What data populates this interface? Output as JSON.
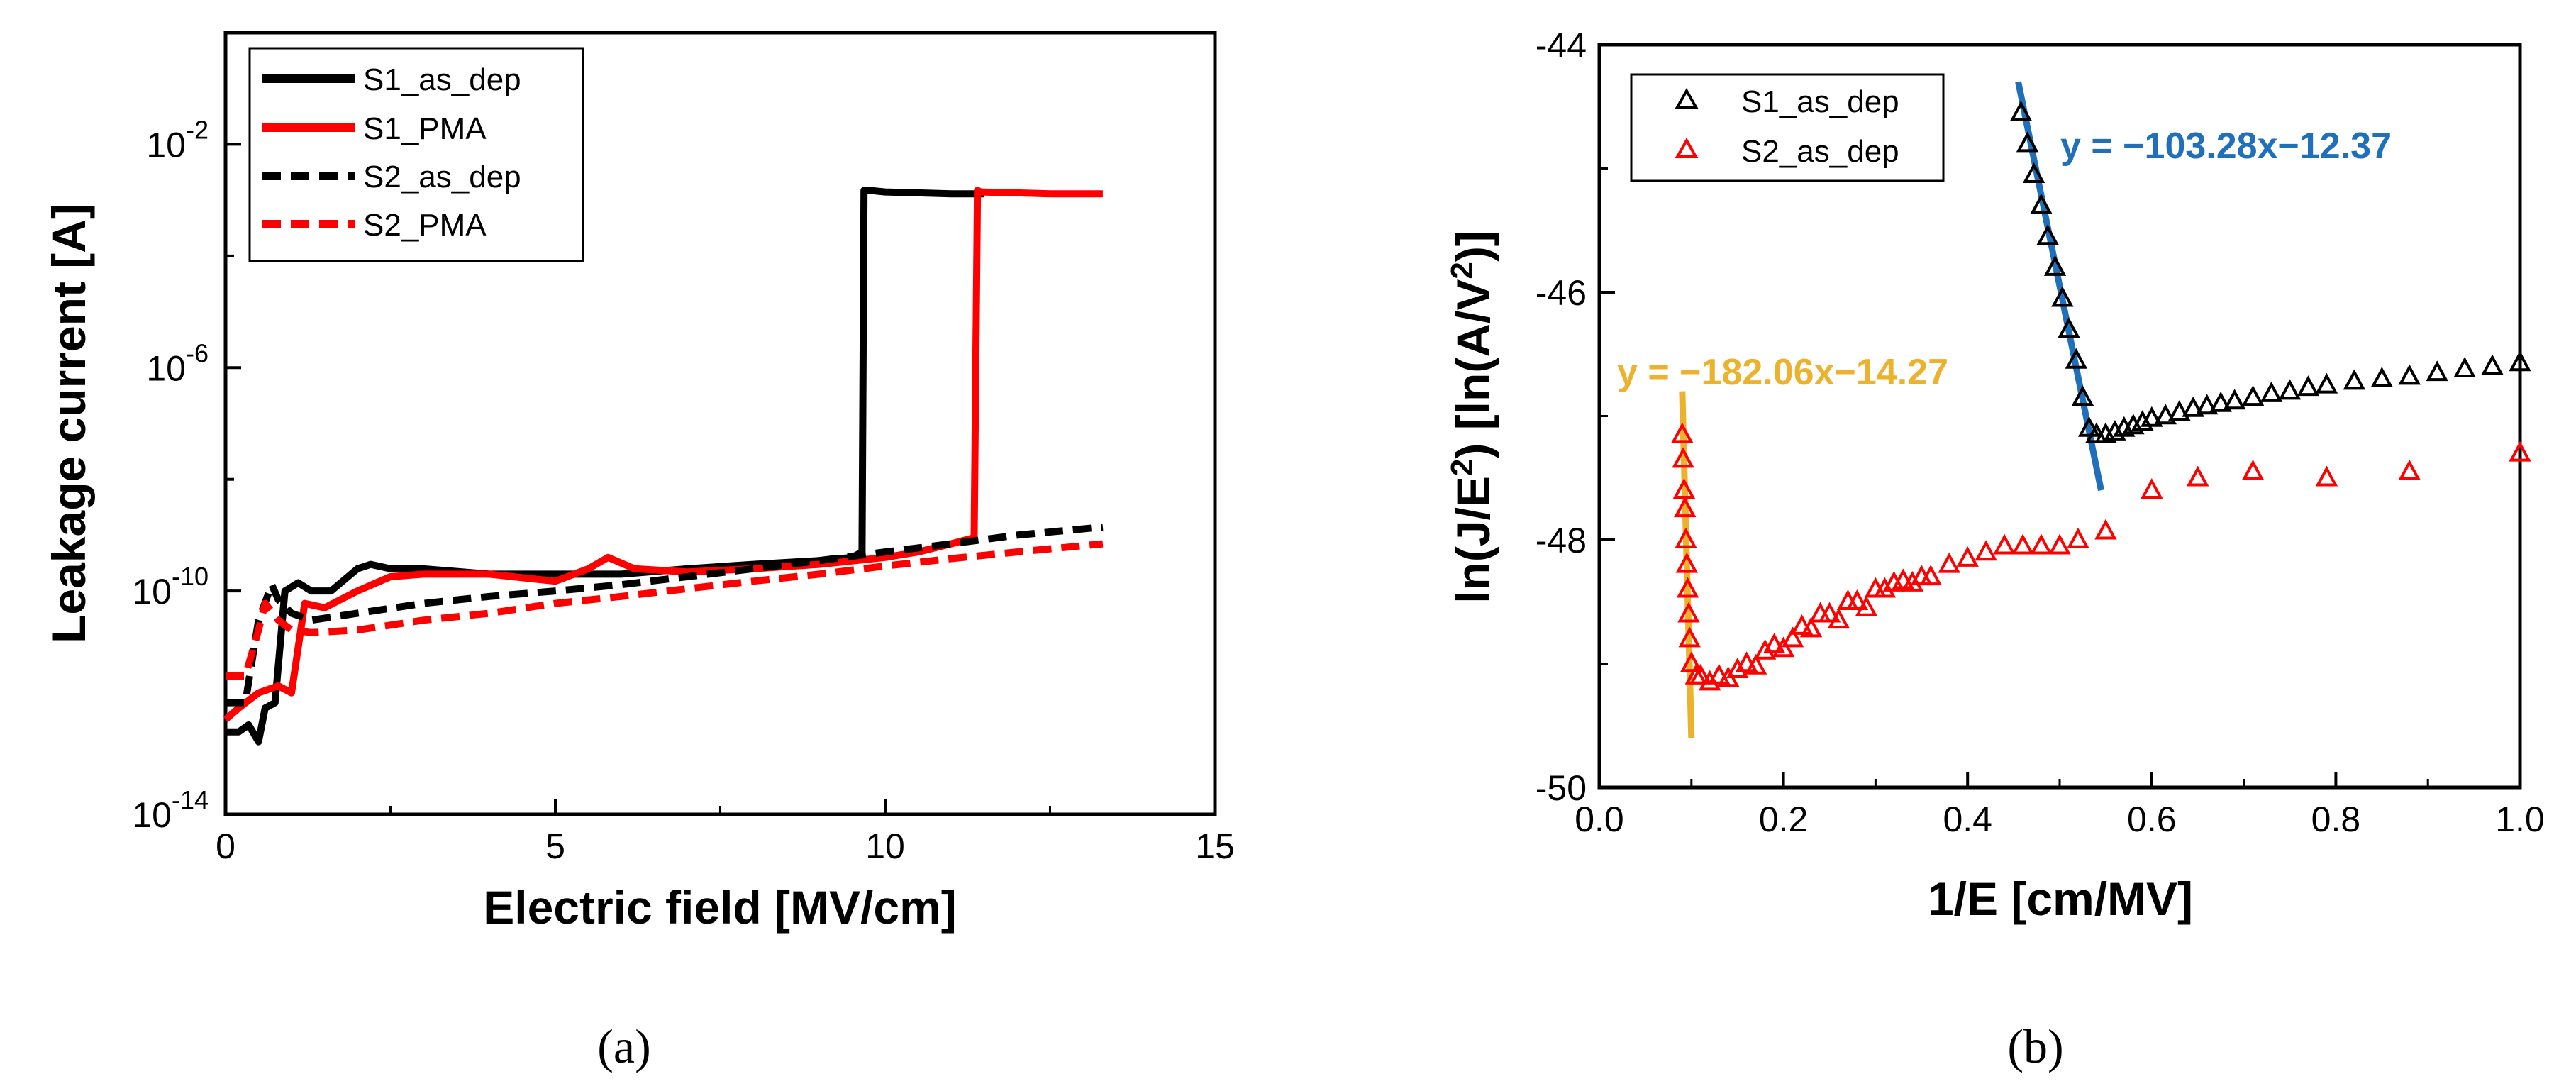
{
  "chart_data": [
    {
      "type": "line",
      "panel_label": "(a)",
      "xlabel": "Electric field [MV/cm]",
      "ylabel": "Leakage current [A]",
      "yscale": "log",
      "xlim": [
        0,
        15
      ],
      "ylim": [
        1e-14,
        1.0
      ],
      "xticks": [
        "0",
        "5",
        "10",
        "15"
      ],
      "yticks": [
        {
          "base": "10",
          "exp": "-14"
        },
        {
          "base": "10",
          "exp": "-10"
        },
        {
          "base": "10",
          "exp": "-6"
        },
        {
          "base": "10",
          "exp": "-2"
        }
      ],
      "legend": [
        "S1_as_dep",
        "S1_PMA",
        "S2_as_dep",
        "S2_PMA"
      ],
      "series": [
        {
          "name": "S1_as_dep",
          "color": "#000000",
          "style": "solid",
          "x": [
            0,
            0.2,
            0.35,
            0.5,
            0.6,
            0.75,
            0.9,
            1.1,
            1.3,
            1.6,
            2.0,
            2.2,
            2.5,
            3,
            4,
            5,
            6,
            7,
            8,
            9,
            9.5,
            9.65,
            9.68,
            9.75,
            10,
            10.5,
            11,
            11.5
          ],
          "y": [
            3e-13,
            3e-13,
            4e-13,
            2e-13,
            8e-13,
            1e-12,
            1e-10,
            1.4e-10,
            1e-10,
            1e-10,
            2.5e-10,
            3e-10,
            2.5e-10,
            2.5e-10,
            2e-10,
            2e-10,
            2e-10,
            2.5e-10,
            3e-10,
            3.5e-10,
            4e-10,
            5e-10,
            0.0015,
            0.0015,
            0.0014,
            0.00135,
            0.0013,
            0.0013
          ]
        },
        {
          "name": "S1_PMA",
          "color": "#ff0000",
          "style": "solid",
          "x": [
            0,
            0.2,
            0.5,
            0.8,
            1.0,
            1.2,
            1.5,
            2.0,
            2.5,
            3,
            4,
            5,
            5.5,
            5.8,
            6.2,
            7,
            8,
            9,
            10,
            10.5,
            11,
            11.35,
            11.4,
            11.45,
            12,
            12.5,
            13,
            13.3
          ],
          "y": [
            5e-13,
            8e-13,
            1.5e-12,
            2e-12,
            1.5e-12,
            6e-11,
            5e-11,
            1e-10,
            1.8e-10,
            2e-10,
            2e-10,
            1.5e-10,
            2.5e-10,
            4e-10,
            2.5e-10,
            2.2e-10,
            2.5e-10,
            3e-10,
            4e-10,
            5e-10,
            7e-10,
            9e-10,
            0.0015,
            0.0014,
            0.00135,
            0.0013,
            0.0013,
            0.0013
          ]
        },
        {
          "name": "S2_as_dep",
          "color": "#000000",
          "style": "dashed",
          "x": [
            0,
            0.3,
            0.5,
            0.7,
            0.8,
            1.0,
            1.3,
            2,
            3,
            4,
            5,
            6,
            7,
            8,
            9,
            10,
            11,
            12,
            13.3
          ],
          "y": [
            1e-12,
            1e-12,
            3e-11,
            1.3e-10,
            7e-11,
            4e-11,
            3e-11,
            4e-11,
            6e-11,
            8e-11,
            1e-10,
            1.3e-10,
            1.8e-10,
            2.5e-10,
            3.5e-10,
            5e-10,
            7e-10,
            1e-09,
            1.4e-09
          ]
        },
        {
          "name": "S2_PMA",
          "color": "#ff0000",
          "style": "dashed",
          "x": [
            0,
            0.3,
            0.5,
            0.6,
            0.8,
            1.0,
            1.3,
            2,
            3,
            4,
            5,
            6,
            7,
            8,
            9,
            10,
            11,
            12,
            13.3
          ],
          "y": [
            3e-12,
            3e-12,
            2e-11,
            6e-11,
            3e-11,
            2e-11,
            1.8e-11,
            2e-11,
            3e-11,
            4e-11,
            6e-11,
            8e-11,
            1.1e-10,
            1.5e-10,
            2e-10,
            2.8e-10,
            3.8e-10,
            5e-10,
            7e-10
          ]
        }
      ]
    },
    {
      "type": "scatter",
      "panel_label": "(b)",
      "xlabel": "1/E [cm/MV]",
      "ylabel": {
        "pre": "ln(J/E",
        "sup1": "2",
        "mid": ") [ln(A/V",
        "sup2": "2",
        "post": ")]"
      },
      "xlim": [
        0,
        1.0
      ],
      "ylim": [
        -50,
        -44
      ],
      "xticks": [
        "0.0",
        "0.2",
        "0.4",
        "0.6",
        "0.8",
        "1.0"
      ],
      "yticks": [
        "-50",
        "-48",
        "-46",
        "-44"
      ],
      "legend": [
        "S1_as_dep",
        "S2_as_dep"
      ],
      "series": [
        {
          "name": "S1_as_dep",
          "color": "#000000",
          "marker": "open-triangle",
          "x": [
            0.458,
            0.465,
            0.472,
            0.48,
            0.487,
            0.495,
            0.503,
            0.51,
            0.518,
            0.525,
            0.532,
            0.54,
            0.55,
            0.56,
            0.57,
            0.58,
            0.59,
            0.6,
            0.615,
            0.63,
            0.645,
            0.66,
            0.675,
            0.69,
            0.71,
            0.73,
            0.75,
            0.77,
            0.79,
            0.82,
            0.85,
            0.88,
            0.91,
            0.94,
            0.97,
            1.0
          ],
          "y": [
            -44.55,
            -44.8,
            -45.05,
            -45.3,
            -45.55,
            -45.8,
            -46.05,
            -46.3,
            -46.55,
            -46.85,
            -47.1,
            -47.15,
            -47.15,
            -47.13,
            -47.1,
            -47.08,
            -47.05,
            -47.02,
            -47.0,
            -46.97,
            -46.94,
            -46.92,
            -46.9,
            -46.88,
            -46.85,
            -46.82,
            -46.8,
            -46.77,
            -46.75,
            -46.72,
            -46.7,
            -46.68,
            -46.65,
            -46.62,
            -46.6,
            -46.57
          ]
        },
        {
          "name": "S2_as_dep",
          "color": "#ff0000",
          "marker": "open-triangle",
          "x": [
            0.09,
            0.091,
            0.092,
            0.093,
            0.094,
            0.095,
            0.096,
            0.097,
            0.098,
            0.1,
            0.105,
            0.11,
            0.12,
            0.13,
            0.14,
            0.15,
            0.16,
            0.17,
            0.18,
            0.19,
            0.2,
            0.21,
            0.22,
            0.23,
            0.24,
            0.25,
            0.26,
            0.27,
            0.28,
            0.29,
            0.3,
            0.31,
            0.32,
            0.33,
            0.34,
            0.35,
            0.36,
            0.38,
            0.4,
            0.42,
            0.44,
            0.46,
            0.48,
            0.5,
            0.52,
            0.55,
            0.6,
            0.65,
            0.71,
            0.79,
            0.88,
            1.0
          ],
          "y": [
            -47.15,
            -47.35,
            -47.6,
            -47.75,
            -48.0,
            -48.2,
            -48.4,
            -48.6,
            -48.8,
            -49.0,
            -49.1,
            -49.1,
            -49.15,
            -49.1,
            -49.12,
            -49.05,
            -49.0,
            -49.02,
            -48.9,
            -48.85,
            -48.88,
            -48.8,
            -48.7,
            -48.72,
            -48.6,
            -48.6,
            -48.65,
            -48.5,
            -48.5,
            -48.55,
            -48.4,
            -48.4,
            -48.35,
            -48.33,
            -48.35,
            -48.3,
            -48.3,
            -48.2,
            -48.15,
            -48.1,
            -48.05,
            -48.05,
            -48.05,
            -48.05,
            -48.0,
            -47.93,
            -47.6,
            -47.5,
            -47.45,
            -47.5,
            -47.45,
            -47.3
          ]
        }
      ],
      "fits": [
        {
          "label": "y = −103.28x−12.37",
          "color": "#1f6fba",
          "x": [
            0.455,
            0.545
          ],
          "y": [
            -44.3,
            -47.6
          ]
        },
        {
          "label": "y = −182.06x−14.27",
          "color": "#ecb22e",
          "x": [
            0.09,
            0.1
          ],
          "y": [
            -46.8,
            -49.6
          ]
        }
      ]
    }
  ]
}
